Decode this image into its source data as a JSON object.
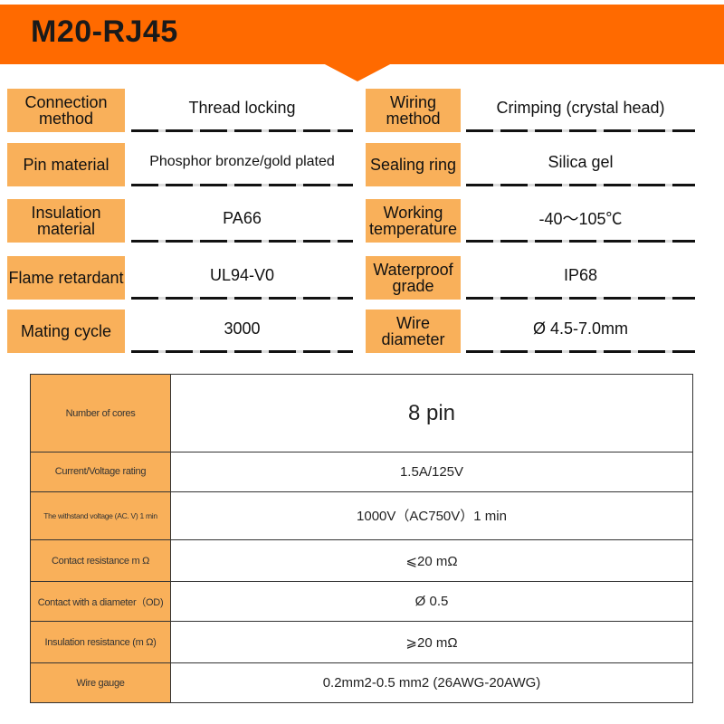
{
  "header": {
    "title": "M20-RJ45",
    "accent": "#FF6A00",
    "label_bg": "#F9B05A"
  },
  "specs": [
    {
      "label": "Connection method",
      "value": "Thread locking"
    },
    {
      "label": "Wiring method",
      "value": "Crimping (crystal head)"
    },
    {
      "label": "Pin material",
      "value": "Phosphor bronze/gold plated"
    },
    {
      "label": "Sealing ring",
      "value": "Silica gel"
    },
    {
      "label": "Insulation material",
      "value": "PA66"
    },
    {
      "label": "Working temperature",
      "value": "-40～105℃"
    },
    {
      "label": "Flame retardant",
      "value": "UL94-V0"
    },
    {
      "label": "Waterproof grade",
      "value": "IP68"
    },
    {
      "label": "Mating cycle",
      "value": "3000"
    },
    {
      "label": "Wire diameter",
      "value": "Ø 4.5-7.0mm"
    }
  ],
  "table": [
    {
      "label": "Number of cores",
      "value": "8  pin"
    },
    {
      "label": "Current/Voltage rating",
      "value": "1.5A/125V"
    },
    {
      "label": "The withstand voltage (AC. V) 1 min",
      "value": "1000V（AC750V）1 min"
    },
    {
      "label": "Contact resistance m Ω",
      "value": "⩽20 mΩ"
    },
    {
      "label": "Contact with a diameter（OD)",
      "value": "Ø 0.5"
    },
    {
      "label": "Insulation resistance (m Ω)",
      "value": "⩾20 mΩ"
    },
    {
      "label": "Wire gauge",
      "value": "0.2mm2-0.5 mm2 (26AWG-20AWG)"
    }
  ]
}
